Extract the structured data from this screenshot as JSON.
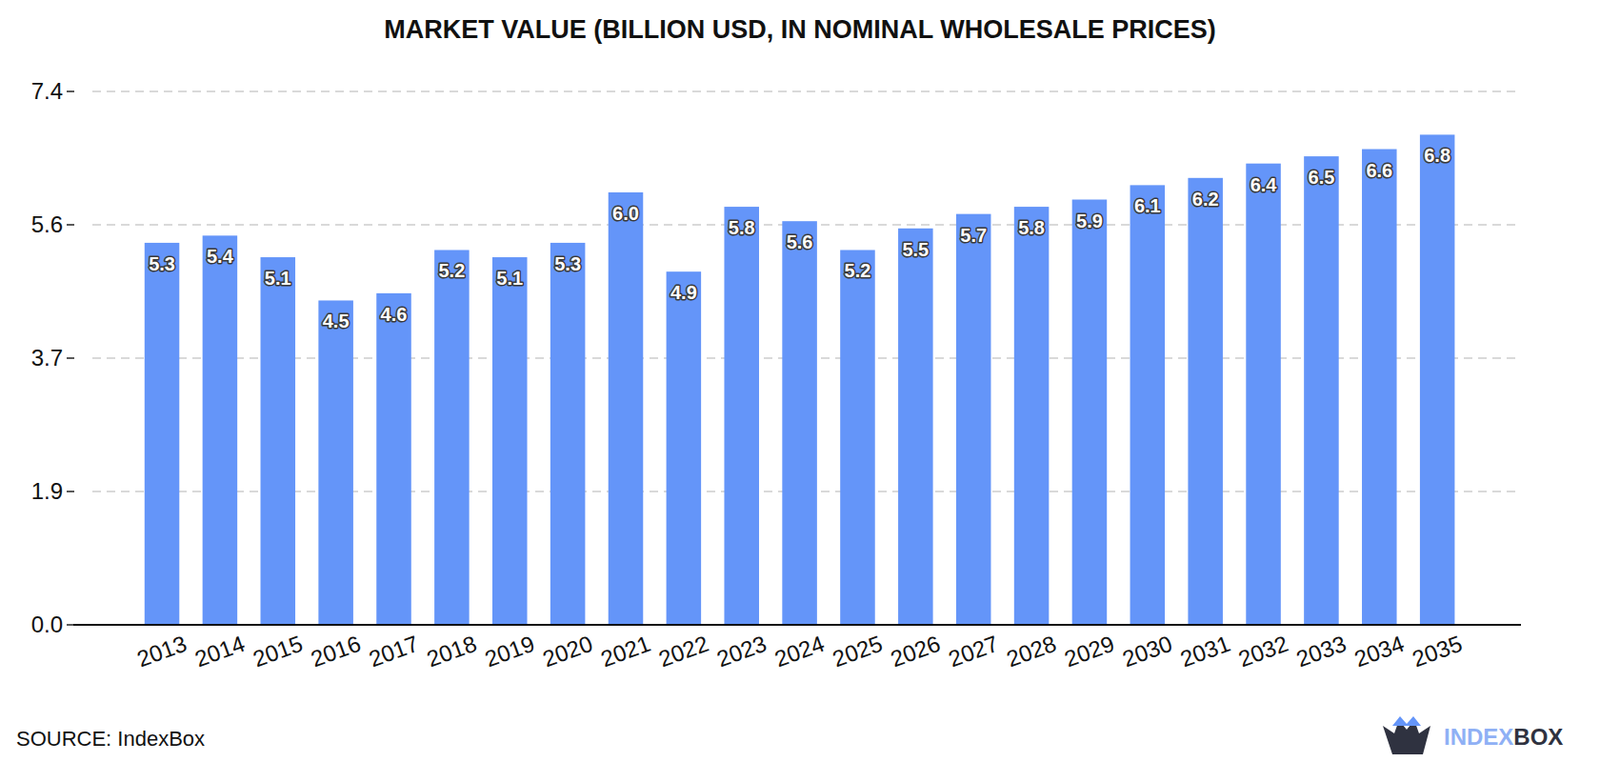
{
  "chart_data": {
    "type": "bar",
    "title": "MARKET VALUE (BILLION USD, IN NOMINAL WHOLESALE PRICES)",
    "categories": [
      "2013",
      "2014",
      "2015",
      "2016",
      "2017",
      "2018",
      "2019",
      "2020",
      "2021",
      "2022",
      "2023",
      "2024",
      "2025",
      "2026",
      "2027",
      "2028",
      "2029",
      "2030",
      "2031",
      "2032",
      "2033",
      "2034",
      "2035"
    ],
    "values": [
      5.3,
      5.4,
      5.1,
      4.5,
      4.6,
      5.2,
      5.1,
      5.3,
      6.0,
      4.9,
      5.8,
      5.6,
      5.2,
      5.5,
      5.7,
      5.8,
      5.9,
      6.1,
      6.2,
      6.4,
      6.5,
      6.6,
      6.8
    ],
    "value_labels": [
      "5.3",
      "5.4",
      "5.1",
      "4.5",
      "4.6",
      "5.2",
      "5.1",
      "5.3",
      "6.0",
      "4.9",
      "5.8",
      "5.6",
      "5.2",
      "5.5",
      "5.7",
      "5.8",
      "5.9",
      "6.1",
      "6.2",
      "6.4",
      "6.5",
      "6.6",
      "6.8"
    ],
    "color": "#6495f9",
    "ylim": [
      0,
      7.4
    ],
    "yticks": [
      {
        "value": 0,
        "label": "0.0"
      },
      {
        "value": 1.85,
        "label": "1.9"
      },
      {
        "value": 3.7,
        "label": "3.7"
      },
      {
        "value": 5.55,
        "label": "5.6"
      },
      {
        "value": 7.4,
        "label": "7.4"
      }
    ],
    "grid": true,
    "data_labels": true,
    "source": "SOURCE: IndexBox",
    "logo": [
      "INDEX",
      "BOX"
    ]
  }
}
